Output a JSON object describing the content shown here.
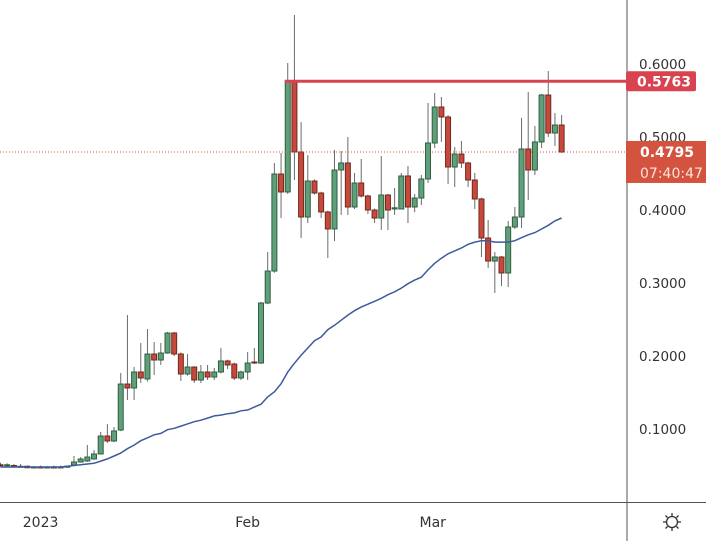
{
  "chart_data": {
    "type": "candlestick",
    "title": "",
    "xlabel": "",
    "ylabel": "",
    "ylim": [
      0.0,
      0.6877
    ],
    "grid": false,
    "x_ticks": [
      {
        "label": "2023",
        "index": 6
      },
      {
        "label": "Feb",
        "index": 37
      },
      {
        "label": "Mar",
        "index": 64.7
      }
    ],
    "y_ticks": [
      {
        "label": "0.6000",
        "value": 0.6
      },
      {
        "label": "0.5000",
        "value": 0.5
      },
      {
        "label": "0.4000",
        "value": 0.4
      },
      {
        "label": "0.3000",
        "value": 0.3
      },
      {
        "label": "0.2000",
        "value": 0.2
      },
      {
        "label": "0.1000",
        "value": 0.1
      }
    ],
    "candles_ohlc": [
      [
        0.051,
        0.054,
        0.048,
        0.05
      ],
      [
        0.05,
        0.053,
        0.048,
        0.051
      ],
      [
        0.05,
        0.052,
        0.047,
        0.048
      ],
      [
        0.049,
        0.052,
        0.047,
        0.049
      ],
      [
        0.049,
        0.05,
        0.046,
        0.047
      ],
      [
        0.047,
        0.049,
        0.046,
        0.048
      ],
      [
        0.048,
        0.05,
        0.046,
        0.047
      ],
      [
        0.047,
        0.049,
        0.046,
        0.048
      ],
      [
        0.048,
        0.05,
        0.046,
        0.047
      ],
      [
        0.047,
        0.05,
        0.046,
        0.048
      ],
      [
        0.048,
        0.05,
        0.047,
        0.049
      ],
      [
        0.0507,
        0.063,
        0.049,
        0.0548
      ],
      [
        0.0548,
        0.0616,
        0.054,
        0.0589
      ],
      [
        0.0562,
        0.0781,
        0.055,
        0.0616
      ],
      [
        0.0589,
        0.0712,
        0.058,
        0.0658
      ],
      [
        0.0658,
        0.0959,
        0.065,
        0.0904
      ],
      [
        0.0904,
        0.1068,
        0.0808,
        0.0836
      ],
      [
        0.0836,
        0.1027,
        0.082,
        0.0973
      ],
      [
        0.0986,
        0.1767,
        0.097,
        0.1616
      ],
      [
        0.1616,
        0.2562,
        0.1397,
        0.1562
      ],
      [
        0.1562,
        0.1849,
        0.1397,
        0.1781
      ],
      [
        0.1781,
        0.2178,
        0.163,
        0.1699
      ],
      [
        0.1685,
        0.237,
        0.165,
        0.2027
      ],
      [
        0.2027,
        0.2192,
        0.174,
        0.1945
      ],
      [
        0.1945,
        0.2178,
        0.1877,
        0.2041
      ],
      [
        0.2041,
        0.2329,
        0.203,
        0.2315
      ],
      [
        0.2315,
        0.233,
        0.2,
        0.2027
      ],
      [
        0.2027,
        0.205,
        0.1658,
        0.1753
      ],
      [
        0.1753,
        0.2027,
        0.173,
        0.1849
      ],
      [
        0.1849,
        0.186,
        0.163,
        0.1671
      ],
      [
        0.1671,
        0.1877,
        0.163,
        0.1781
      ],
      [
        0.1781,
        0.1877,
        0.1671,
        0.1712
      ],
      [
        0.1712,
        0.1836,
        0.1671,
        0.1781
      ],
      [
        0.1781,
        0.211,
        0.176,
        0.1932
      ],
      [
        0.1932,
        0.195,
        0.1822,
        0.1877
      ],
      [
        0.189,
        0.191,
        0.1671,
        0.1699
      ],
      [
        0.1699,
        0.18,
        0.1671,
        0.1781
      ],
      [
        0.1781,
        0.2055,
        0.1671,
        0.1904
      ],
      [
        0.1918,
        0.211,
        0.189,
        0.1904
      ],
      [
        0.1904,
        0.274,
        0.189,
        0.2726
      ],
      [
        0.2726,
        0.3425,
        0.271,
        0.3164
      ],
      [
        0.3164,
        0.4644,
        0.314,
        0.4493
      ],
      [
        0.4493,
        0.4781,
        0.389,
        0.4247
      ],
      [
        0.4247,
        0.6014,
        0.422,
        0.5763
      ],
      [
        0.5763,
        0.6671,
        0.4411,
        0.4795
      ],
      [
        0.4795,
        0.5205,
        0.3616,
        0.3904
      ],
      [
        0.3904,
        0.4753,
        0.3822,
        0.4397
      ],
      [
        0.4397,
        0.442,
        0.421,
        0.4233
      ],
      [
        0.4233,
        0.425,
        0.389,
        0.3973
      ],
      [
        0.3973,
        0.399,
        0.3342,
        0.374
      ],
      [
        0.374,
        0.4822,
        0.3575,
        0.4548
      ],
      [
        0.4548,
        0.4808,
        0.3932,
        0.4644
      ],
      [
        0.4644,
        0.5,
        0.3932,
        0.4041
      ],
      [
        0.4041,
        0.4507,
        0.4014,
        0.437
      ],
      [
        0.437,
        0.4699,
        0.417,
        0.4192
      ],
      [
        0.4192,
        0.421,
        0.3945,
        0.4
      ],
      [
        0.4,
        0.402,
        0.3822,
        0.389
      ],
      [
        0.389,
        0.474,
        0.3726,
        0.4205
      ],
      [
        0.4205,
        0.422,
        0.3726,
        0.4
      ],
      [
        0.4014,
        0.4301,
        0.3932,
        0.403
      ],
      [
        0.4014,
        0.4507,
        0.4041,
        0.4466
      ],
      [
        0.4466,
        0.4603,
        0.3822,
        0.4041
      ],
      [
        0.4041,
        0.4219,
        0.397,
        0.4164
      ],
      [
        0.4164,
        0.4479,
        0.4068,
        0.4425
      ],
      [
        0.4425,
        0.5466,
        0.437,
        0.4918
      ],
      [
        0.4918,
        0.5603,
        0.4849,
        0.5411
      ],
      [
        0.5411,
        0.5548,
        0.4932,
        0.5274
      ],
      [
        0.5274,
        0.53,
        0.4356,
        0.4589
      ],
      [
        0.4589,
        0.4863,
        0.4315,
        0.4767
      ],
      [
        0.4767,
        0.4945,
        0.4575,
        0.4644
      ],
      [
        0.4644,
        0.466,
        0.4315,
        0.4411
      ],
      [
        0.4411,
        0.4507,
        0.4014,
        0.4151
      ],
      [
        0.4151,
        0.417,
        0.3356,
        0.3616
      ],
      [
        0.3616,
        0.3863,
        0.3205,
        0.3301
      ],
      [
        0.3301,
        0.3425,
        0.2863,
        0.3356
      ],
      [
        0.3356,
        0.337,
        0.2959,
        0.3137
      ],
      [
        0.3137,
        0.3849,
        0.2945,
        0.3767
      ],
      [
        0.3767,
        0.4041,
        0.374,
        0.3904
      ],
      [
        0.3904,
        0.526,
        0.3753,
        0.4836
      ],
      [
        0.4836,
        0.5616,
        0.4137,
        0.4548
      ],
      [
        0.4548,
        0.5151,
        0.4479,
        0.4932
      ],
      [
        0.4932,
        0.559,
        0.4849,
        0.5575
      ],
      [
        0.5575,
        0.5904,
        0.5,
        0.5055
      ],
      [
        0.5055,
        0.5329,
        0.4877,
        0.5164
      ],
      [
        0.5164,
        0.5301,
        0.478,
        0.4795
      ]
    ],
    "moving_average": [
      0.048,
      0.048,
      0.048,
      0.048,
      0.048,
      0.048,
      0.048,
      0.048,
      0.048,
      0.048,
      0.049,
      0.05,
      0.051,
      0.052,
      0.053,
      0.056,
      0.059,
      0.063,
      0.067,
      0.073,
      0.078,
      0.084,
      0.088,
      0.092,
      0.094,
      0.099,
      0.101,
      0.104,
      0.107,
      0.11,
      0.112,
      0.115,
      0.118,
      0.119,
      0.121,
      0.122,
      0.125,
      0.126,
      0.13,
      0.134,
      0.144,
      0.151,
      0.162,
      0.178,
      0.19,
      0.201,
      0.211,
      0.221,
      0.226,
      0.236,
      0.242,
      0.249,
      0.256,
      0.262,
      0.267,
      0.271,
      0.275,
      0.279,
      0.284,
      0.288,
      0.293,
      0.299,
      0.304,
      0.308,
      0.318,
      0.327,
      0.334,
      0.34,
      0.344,
      0.348,
      0.353,
      0.356,
      0.358,
      0.358,
      0.356,
      0.356,
      0.356,
      0.358,
      0.362,
      0.366,
      0.369,
      0.374,
      0.379,
      0.385,
      0.389
    ],
    "resistance": {
      "value": 0.5763,
      "label": "0.5763",
      "start_index": 43,
      "color": "#d9434f"
    },
    "last_price": {
      "value": 0.4795,
      "label": "0.4795",
      "countdown": "07:40:47",
      "color": "#d4533f"
    },
    "colors": {
      "up": "#5f9f7a",
      "up_border": "#2f5f40",
      "down": "#c8493b",
      "down_border": "#6e2a20",
      "wick": "#6b6b6b",
      "ma": "#3e5a9c"
    }
  },
  "toolbar": {
    "theme_icon": "sun-icon"
  }
}
